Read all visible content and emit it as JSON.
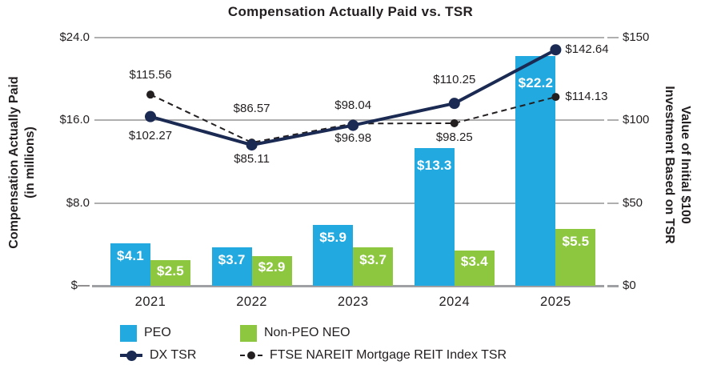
{
  "title": "Compensation Actually Paid vs. TSR",
  "colors": {
    "peo_blue": "#21A9E0",
    "neo_green": "#8DC63F",
    "dx_navy": "#1B2A52",
    "ftse_black": "#231F20",
    "ink": "#231F20",
    "gridline_gray": "#AFAFB0",
    "baseline_gray": "#9EA0A3",
    "bar_label_white": "#FFFFFF"
  },
  "left_axis": {
    "title_line1": "Compensation Actually Paid",
    "title_line2": "(in millions)",
    "ticks": [
      "$24.0",
      "$16.0",
      "$8.0",
      "$—"
    ]
  },
  "right_axis": {
    "title_line1": "Value of Initial $100",
    "title_line2": "Investment Based on TSR",
    "ticks": [
      "$150",
      "$100",
      "$50",
      "$0"
    ]
  },
  "legend": {
    "peo": {
      "label": "PEO",
      "swatch": "blue-square"
    },
    "neo": {
      "label": "Non-PEO NEO",
      "swatch": "green-square"
    },
    "dx": {
      "label": "DX TSR",
      "swatch": "navy-line-dot"
    },
    "ftse": {
      "label": "FTSE NAREIT Mortgage REIT Index TSR",
      "swatch": "black-dashed-line-dot"
    }
  },
  "chart_data": {
    "type": "combo (grouped bar + line)",
    "categories": [
      "2021",
      "2022",
      "2023",
      "2024",
      "2025"
    ],
    "left_ylim": [
      0,
      24
    ],
    "right_ylim": [
      0,
      150
    ],
    "gridline_values_right_axis": [
      150,
      100,
      50,
      0
    ],
    "grid": "horizontal-only",
    "legend_position": "bottom-left",
    "bar_series": [
      {
        "name": "PEO",
        "axis": "left",
        "color_key": "peo_blue",
        "values": [
          4.1,
          3.7,
          5.9,
          13.3,
          22.2
        ],
        "labels": [
          "$4.1",
          "$3.7",
          "$5.9",
          "$13.3",
          "$22.2"
        ],
        "label_dy": [
          7,
          7,
          7,
          13,
          25
        ]
      },
      {
        "name": "Non-PEO NEO",
        "axis": "left",
        "color_key": "neo_green",
        "values": [
          2.5,
          2.9,
          3.7,
          3.4,
          5.5
        ],
        "labels": [
          "$2.5",
          "$2.9",
          "$3.7",
          "$3.4",
          "$5.5"
        ],
        "label_dy": [
          5,
          5,
          7,
          5,
          7
        ]
      }
    ],
    "line_series": [
      {
        "name": "FTSE NAREIT Mortgage REIT Index TSR",
        "axis": "right",
        "color_key": "ftse_black",
        "style": "dashed",
        "dot_radius": 5,
        "stroke_width": 2,
        "values": [
          115.56,
          86.57,
          98.04,
          98.25,
          114.13
        ],
        "labels": [
          "$115.56",
          "$86.57",
          "$98.04",
          "$98.25",
          "$114.13"
        ],
        "label_placements": [
          {
            "pos": "above",
            "off": 24
          },
          {
            "pos": "above",
            "off": 42
          },
          {
            "pos": "above",
            "off": 22
          },
          {
            "pos": "below",
            "off": 18
          },
          {
            "pos": "right",
            "off": 12
          }
        ]
      },
      {
        "name": "DX TSR",
        "axis": "right",
        "color_key": "dx_navy",
        "style": "solid",
        "dot_radius": 7,
        "stroke_width": 4,
        "values": [
          102.27,
          85.11,
          96.98,
          110.25,
          142.64
        ],
        "labels": [
          "$102.27",
          "$85.11",
          "$96.98",
          "$110.25",
          "$142.64"
        ],
        "label_placements": [
          {
            "pos": "below",
            "off": 24
          },
          {
            "pos": "below",
            "off": 18
          },
          {
            "pos": "below",
            "off": 16
          },
          {
            "pos": "above",
            "off": 29
          },
          {
            "pos": "right",
            "off": 12
          }
        ]
      }
    ]
  }
}
